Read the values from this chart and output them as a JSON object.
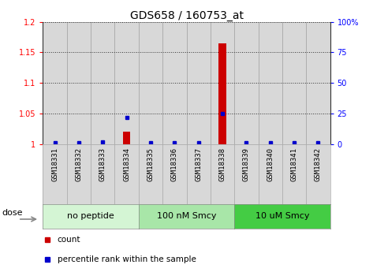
{
  "title": "GDS658 / 160753_at",
  "samples": [
    "GSM18331",
    "GSM18332",
    "GSM18333",
    "GSM18334",
    "GSM18335",
    "GSM18336",
    "GSM18337",
    "GSM18338",
    "GSM18339",
    "GSM18340",
    "GSM18341",
    "GSM18342"
  ],
  "count_values": [
    1.0,
    1.0,
    1.0,
    1.02,
    1.0,
    1.0,
    1.0,
    1.165,
    1.0,
    1.0,
    1.0,
    1.0
  ],
  "percentile_values": [
    1.0,
    1.0,
    2.0,
    22.0,
    1.0,
    1.0,
    1.0,
    25.0,
    1.0,
    1.0,
    1.0,
    1.0
  ],
  "ylim_left": [
    1.0,
    1.2
  ],
  "ylim_right": [
    0,
    100
  ],
  "yticks_left": [
    1.0,
    1.05,
    1.1,
    1.15,
    1.2
  ],
  "yticks_right": [
    0,
    25,
    50,
    75,
    100
  ],
  "ytick_labels_left": [
    "1",
    "1.05",
    "1.1",
    "1.15",
    "1.2"
  ],
  "ytick_labels_right": [
    "0",
    "25",
    "50",
    "75",
    "100%"
  ],
  "groups": [
    {
      "label": "no peptide",
      "start": 0,
      "end": 3,
      "color": "#d4f5d4"
    },
    {
      "label": "100 nM Smcy",
      "start": 4,
      "end": 7,
      "color": "#a8e6a8"
    },
    {
      "label": "10 uM Smcy",
      "start": 8,
      "end": 11,
      "color": "#44cc44"
    }
  ],
  "count_color": "#cc0000",
  "percentile_color": "#0000cc",
  "col_bg_color": "#d8d8d8",
  "col_edge_color": "#999999",
  "grid_color": "#333333",
  "bg_color": "#ffffff",
  "title_fontsize": 10,
  "tick_fontsize": 7,
  "sample_fontsize": 6.5,
  "group_fontsize": 8,
  "dose_label": "dose",
  "legend_count": "count",
  "legend_percentile": "percentile rank within the sample"
}
